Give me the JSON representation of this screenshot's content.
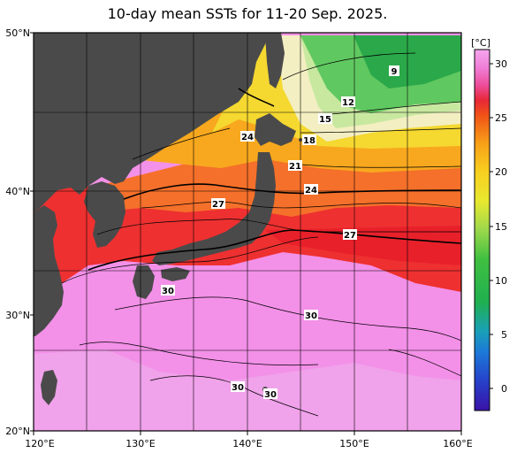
{
  "title": "10-day mean SSTs for 11-20 Sep. 2025.",
  "lat_labels": [
    "50°N",
    "40°N",
    "30°N",
    "20°N"
  ],
  "lon_labels": [
    "120°E",
    "130°E",
    "140°E",
    "150°E",
    "160°E"
  ],
  "colorbar": {
    "unit": "[°C]",
    "ticks": [
      "30",
      "25",
      "20",
      "15",
      "10",
      "5",
      "0"
    ]
  },
  "contour_labels": [
    "9",
    "12",
    "15",
    "18",
    "21",
    "24",
    "24",
    "27",
    "27",
    "30",
    "30",
    "30",
    "30"
  ],
  "colors": {
    "land": "#4a4a4a",
    "sea_30": "#f390e8",
    "sea_29": "#f0a0ea",
    "sea_27": "#ee2b2b",
    "sea_25": "#f56a1c",
    "sea_22": "#f9bb12",
    "sea_20": "#f5dc30",
    "sea_18": "#f4f0c0",
    "sea_15": "#cde8a8",
    "sea_12": "#6fd06a",
    "sea_9": "#2fb04a"
  }
}
